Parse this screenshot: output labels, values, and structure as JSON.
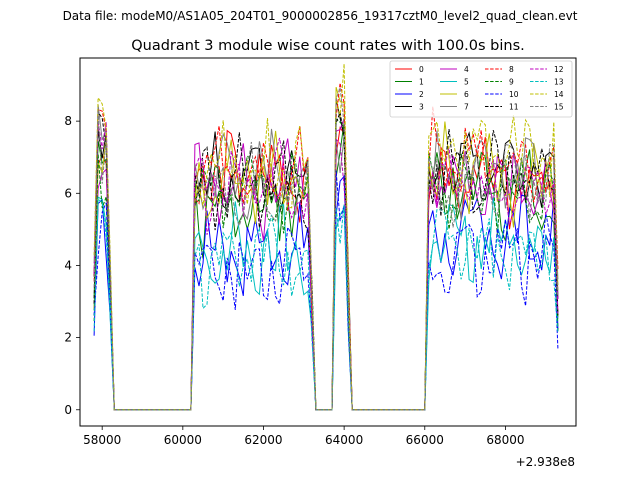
{
  "figure": {
    "suptitle": "Data file: modeM0/AS1A05_204T01_9000002856_19317cztM0_level2_quad_clean.evt"
  },
  "chart_data": {
    "type": "line",
    "title": "Quadrant 3 module wise count rates with 100.0s bins.",
    "xlabel": "",
    "ylabel": "",
    "x_offset_label": "+2.938e8",
    "xlim": [
      57450,
      69750
    ],
    "ylim": [
      -0.45,
      9.75
    ],
    "xticks": [
      58000,
      60000,
      62000,
      64000,
      66000,
      68000
    ],
    "xtick_labels": [
      "58000",
      "60000",
      "62000",
      "64000",
      "66000",
      "68000"
    ],
    "yticks": [
      0,
      2,
      4,
      6,
      8
    ],
    "ytick_labels": [
      "0",
      "2",
      "4",
      "6",
      "8"
    ],
    "grid": false,
    "legend_placement": "top-right",
    "legend_columns": 4,
    "segments": [
      {
        "x": [
          57800,
          58200
        ]
      },
      {
        "x": [
          58200,
          60200
        ]
      },
      {
        "x": [
          60200,
          63200
        ]
      },
      {
        "x": [
          63200,
          63700
        ]
      },
      {
        "x": [
          63700,
          64100
        ]
      },
      {
        "x": [
          64100,
          66000
        ]
      },
      {
        "x": [
          66000,
          69300
        ]
      }
    ],
    "series": [
      {
        "name": "0",
        "color": "#ff0000",
        "dashed": false,
        "levels": [
          6.6,
          0,
          6.5,
          0,
          7.7,
          0,
          6.3
        ],
        "edge": 1.5
      },
      {
        "name": "1",
        "color": "#008000",
        "dashed": false,
        "levels": [
          6.7,
          0,
          5.7,
          0,
          7.3,
          0,
          6.0
        ],
        "edge": 1.5
      },
      {
        "name": "2",
        "color": "#0000ff",
        "dashed": false,
        "levels": [
          5.6,
          0,
          4.5,
          0,
          5.8,
          0,
          4.8
        ],
        "edge": 1.3
      },
      {
        "name": "3",
        "color": "#000000",
        "dashed": false,
        "levels": [
          7.8,
          0,
          6.4,
          0,
          8.0,
          0,
          6.6
        ],
        "edge": 1.5
      },
      {
        "name": "4",
        "color": "#bf00bf",
        "dashed": false,
        "levels": [
          7.0,
          0,
          6.2,
          0,
          7.5,
          0,
          6.2
        ],
        "edge": 1.5
      },
      {
        "name": "5",
        "color": "#00bfbf",
        "dashed": false,
        "levels": [
          5.0,
          0,
          4.3,
          0,
          5.5,
          0,
          4.6
        ],
        "edge": 1.3
      },
      {
        "name": "6",
        "color": "#bfbf00",
        "dashed": false,
        "levels": [
          6.5,
          0,
          6.3,
          0,
          9.2,
          0,
          6.5
        ],
        "edge": 1.5
      },
      {
        "name": "7",
        "color": "#808080",
        "dashed": false,
        "levels": [
          7.7,
          0,
          6.4,
          0,
          7.8,
          0,
          6.6
        ],
        "edge": 1.5
      },
      {
        "name": "8",
        "color": "#ff0000",
        "dashed": true,
        "levels": [
          8.1,
          0,
          6.6,
          0,
          8.3,
          0,
          7.0
        ],
        "edge": 1.5
      },
      {
        "name": "9",
        "color": "#008000",
        "dashed": true,
        "levels": [
          6.8,
          0,
          5.9,
          0,
          7.2,
          0,
          6.0
        ],
        "edge": 1.5
      },
      {
        "name": "10",
        "color": "#0000ff",
        "dashed": true,
        "levels": [
          5.2,
          0,
          3.8,
          0,
          5.7,
          0,
          4.3
        ],
        "edge": 1.3
      },
      {
        "name": "11",
        "color": "#000000",
        "dashed": true,
        "levels": [
          7.6,
          0,
          6.3,
          0,
          7.9,
          0,
          6.5
        ],
        "edge": 1.5
      },
      {
        "name": "12",
        "color": "#bf00bf",
        "dashed": true,
        "levels": [
          7.5,
          0,
          6.1,
          0,
          7.4,
          0,
          6.2
        ],
        "edge": 1.5
      },
      {
        "name": "13",
        "color": "#00bfbf",
        "dashed": true,
        "levels": [
          5.0,
          0,
          4.2,
          0,
          5.4,
          0,
          4.5
        ],
        "edge": 1.3
      },
      {
        "name": "14",
        "color": "#bfbf00",
        "dashed": true,
        "levels": [
          8.4,
          0,
          6.7,
          0,
          8.6,
          0,
          7.2
        ],
        "edge": 1.5
      },
      {
        "name": "15",
        "color": "#808080",
        "dashed": true,
        "levels": [
          7.7,
          0,
          6.2,
          0,
          7.6,
          0,
          6.4
        ],
        "edge": 1.5
      }
    ]
  }
}
